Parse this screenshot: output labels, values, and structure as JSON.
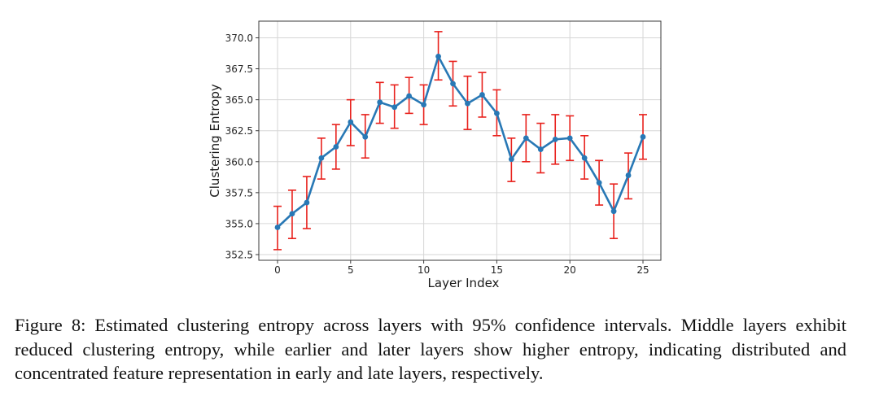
{
  "chart_data": {
    "type": "line",
    "title": "",
    "xlabel": "Layer Index",
    "ylabel": "Clustering Entropy",
    "xlim": [
      -1.3,
      26.3
    ],
    "ylim": [
      352.0,
      371.5
    ],
    "xticks": [
      0,
      5,
      10,
      15,
      20,
      25
    ],
    "xtick_labels": [
      "0",
      "5",
      "10",
      "15",
      "20",
      "25"
    ],
    "yticks": [
      352.5,
      355.0,
      357.5,
      360.0,
      362.5,
      365.0,
      367.5,
      370.0
    ],
    "ytick_labels": [
      "352.5",
      "355.0",
      "357.5",
      "360.0",
      "362.5",
      "365.0",
      "367.5",
      "370.0"
    ],
    "grid": true,
    "legend": "none",
    "series": [
      {
        "name": "Clustering Entropy",
        "color": "#2878b5",
        "errorbar_color": "#e8211c",
        "x": [
          0,
          1,
          2,
          3,
          4,
          5,
          6,
          7,
          8,
          9,
          10,
          11,
          12,
          13,
          14,
          15,
          16,
          17,
          18,
          19,
          20,
          21,
          22,
          23,
          24,
          25
        ],
        "y": [
          354.7,
          355.8,
          356.7,
          360.3,
          361.2,
          363.2,
          362.0,
          364.8,
          364.4,
          365.3,
          364.6,
          368.5,
          366.3,
          364.7,
          365.4,
          363.9,
          360.2,
          361.9,
          361.0,
          361.8,
          361.9,
          360.3,
          358.3,
          356.0,
          358.9,
          362.0
        ],
        "ci_lower": [
          352.9,
          353.8,
          354.6,
          358.6,
          359.4,
          361.3,
          360.3,
          363.1,
          362.7,
          363.9,
          363.0,
          366.6,
          364.5,
          362.6,
          363.6,
          362.1,
          358.4,
          360.0,
          359.1,
          359.8,
          360.1,
          358.6,
          356.5,
          353.8,
          357.0,
          360.2
        ],
        "ci_upper": [
          356.4,
          357.7,
          358.8,
          361.9,
          363.0,
          365.0,
          363.8,
          366.4,
          366.2,
          366.8,
          366.2,
          370.5,
          368.1,
          366.9,
          367.2,
          365.8,
          361.9,
          363.8,
          363.1,
          363.8,
          363.7,
          362.1,
          360.1,
          358.2,
          360.7,
          363.8
        ]
      }
    ]
  },
  "caption": "Figure 8: Estimated clustering entropy across layers with 95% confidence intervals. Middle layers exhibit reduced clustering entropy, while earlier and later layers show higher entropy, indicating distributed and concentrated feature representation in early and late layers, respectively."
}
